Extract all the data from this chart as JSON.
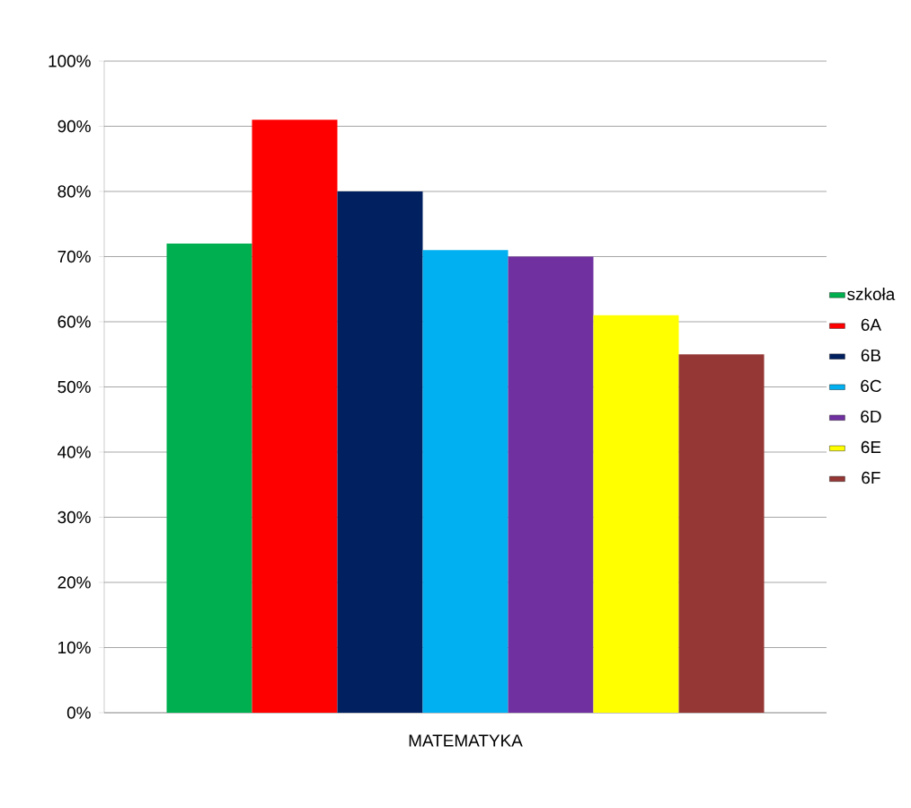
{
  "chart_data": {
    "type": "bar",
    "categories": [
      "MATEMATYKA"
    ],
    "series": [
      {
        "name": "szkoła",
        "color": "#00b050",
        "values": [
          72
        ]
      },
      {
        "name": "6A",
        "color": "#ff0000",
        "values": [
          91
        ]
      },
      {
        "name": "6B",
        "color": "#002060",
        "values": [
          80
        ]
      },
      {
        "name": "6C",
        "color": "#00b0f0",
        "values": [
          71
        ]
      },
      {
        "name": "6D",
        "color": "#7030a0",
        "values": [
          70
        ]
      },
      {
        "name": "6E",
        "color": "#ffff00",
        "values": [
          61
        ]
      },
      {
        "name": "6F",
        "color": "#953735",
        "values": [
          55
        ]
      }
    ],
    "ylim": [
      0,
      100
    ],
    "yticks": [
      {
        "value": 0,
        "label": "0%"
      },
      {
        "value": 10,
        "label": "10%"
      },
      {
        "value": 20,
        "label": "20%"
      },
      {
        "value": 30,
        "label": "30%"
      },
      {
        "value": 40,
        "label": "40%"
      },
      {
        "value": 50,
        "label": "50%"
      },
      {
        "value": 60,
        "label": "60%"
      },
      {
        "value": 70,
        "label": "70%"
      },
      {
        "value": 80,
        "label": "80%"
      },
      {
        "value": 90,
        "label": "90%"
      },
      {
        "value": 100,
        "label": "100%"
      }
    ],
    "grid": "y",
    "legend": "right"
  }
}
